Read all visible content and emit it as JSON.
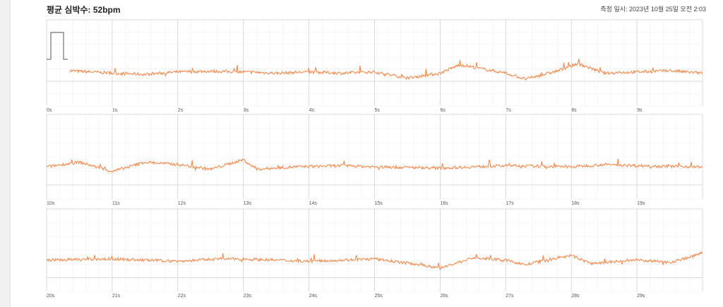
{
  "header": {
    "avg_hr_label": "평균 심박수: 52bpm",
    "measured_at": "측정 일시: 2023년 10월 25일 오전 2:03"
  },
  "colors": {
    "trace": "#f28a4e",
    "grid_major": "#cfcfcf",
    "grid_minor": "#ececec",
    "calibration": "#555555"
  },
  "chart_data": {
    "type": "line",
    "title": "",
    "xlabel": "",
    "ylabel": "",
    "grid": true,
    "strips": [
      {
        "tick_labels": [
          "0s",
          "1s",
          "2s",
          "3s",
          "4s",
          "5s",
          "6s",
          "7s",
          "8s",
          "9s"
        ]
      },
      {
        "tick_labels": [
          "10s",
          "11s",
          "12s",
          "13s",
          "14s",
          "15s",
          "16s",
          "17s",
          "18s",
          "19s"
        ]
      },
      {
        "tick_labels": [
          "20s",
          "21s",
          "22s",
          "23s",
          "24s",
          "25s",
          "26s",
          "27s",
          "28s",
          "29s"
        ]
      }
    ],
    "ylim": [
      -1,
      1
    ],
    "series": [
      {
        "strip": 0,
        "x_start": 0.35,
        "x_end": 10,
        "baseline": [
          [
            0.35,
            0.1
          ],
          [
            1,
            0
          ],
          [
            1.5,
            -0.05
          ],
          [
            2,
            0.05
          ],
          [
            2.5,
            0.08
          ],
          [
            3,
            0.05
          ],
          [
            3.5,
            0.0
          ],
          [
            4,
            0.05
          ],
          [
            4.5,
            0.0
          ],
          [
            5,
            0.05
          ],
          [
            5.5,
            -0.2
          ],
          [
            6,
            0.0
          ],
          [
            6.3,
            0.35
          ],
          [
            7,
            0.0
          ],
          [
            7.3,
            -0.25
          ],
          [
            7.8,
            0.1
          ],
          [
            8.1,
            0.4
          ],
          [
            8.5,
            0.0
          ],
          [
            9,
            0.05
          ],
          [
            9.5,
            0.1
          ],
          [
            10,
            0.0
          ]
        ]
      },
      {
        "strip": 1,
        "x_start": 10,
        "x_end": 20,
        "baseline": [
          [
            10,
            0.0
          ],
          [
            10.5,
            0.2
          ],
          [
            11,
            -0.2
          ],
          [
            11.5,
            0.2
          ],
          [
            12,
            0.1
          ],
          [
            12.5,
            -0.1
          ],
          [
            13,
            0.3
          ],
          [
            13.2,
            -0.1
          ],
          [
            13.8,
            0.0
          ],
          [
            14.5,
            0.05
          ],
          [
            15,
            0.0
          ],
          [
            16,
            -0.05
          ],
          [
            17,
            0.05
          ],
          [
            18,
            0.0
          ],
          [
            18.5,
            0.1
          ],
          [
            19,
            0.05
          ],
          [
            20,
            0.0
          ]
        ]
      },
      {
        "strip": 2,
        "x_start": 20,
        "x_end": 30,
        "baseline": [
          [
            20,
            0.0
          ],
          [
            21,
            0.05
          ],
          [
            22,
            -0.05
          ],
          [
            22.6,
            0.05
          ],
          [
            23,
            0.05
          ],
          [
            24,
            -0.05
          ],
          [
            25,
            0.05
          ],
          [
            25.7,
            -0.2
          ],
          [
            26,
            -0.35
          ],
          [
            26.5,
            0.1
          ],
          [
            27,
            0.0
          ],
          [
            27.3,
            -0.2
          ],
          [
            27.8,
            0.1
          ],
          [
            28,
            0.2
          ],
          [
            28.3,
            -0.15
          ],
          [
            29,
            0.0
          ],
          [
            29.5,
            -0.1
          ],
          [
            29.9,
            0.2
          ],
          [
            30,
            0.35
          ]
        ]
      }
    ]
  }
}
